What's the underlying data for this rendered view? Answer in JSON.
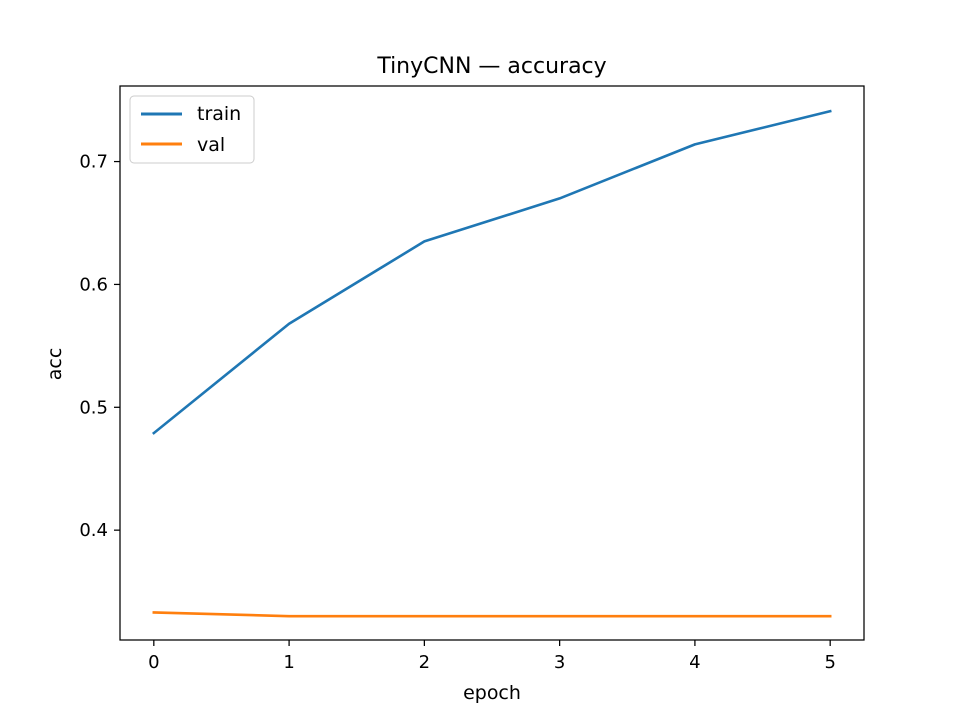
{
  "chart_data": {
    "type": "line",
    "title": "TinyCNN — accuracy",
    "xlabel": "epoch",
    "ylabel": "acc",
    "x": [
      0,
      1,
      2,
      3,
      4,
      5
    ],
    "xticks": [
      "0",
      "1",
      "2",
      "3",
      "4",
      "5"
    ],
    "yticks": [
      "0.4",
      "0.5",
      "0.6",
      "0.7"
    ],
    "xlim": [
      -0.25,
      5.25
    ],
    "ylim": [
      0.3106,
      0.7615
    ],
    "grid": false,
    "legend_position": "upper-left",
    "series": [
      {
        "name": "train",
        "color": "#1f77b4",
        "values": [
          0.479,
          0.568,
          0.635,
          0.67,
          0.714,
          0.741
        ]
      },
      {
        "name": "val",
        "color": "#ff7f0e",
        "values": [
          0.333,
          0.33,
          0.33,
          0.33,
          0.33,
          0.33
        ]
      }
    ]
  }
}
